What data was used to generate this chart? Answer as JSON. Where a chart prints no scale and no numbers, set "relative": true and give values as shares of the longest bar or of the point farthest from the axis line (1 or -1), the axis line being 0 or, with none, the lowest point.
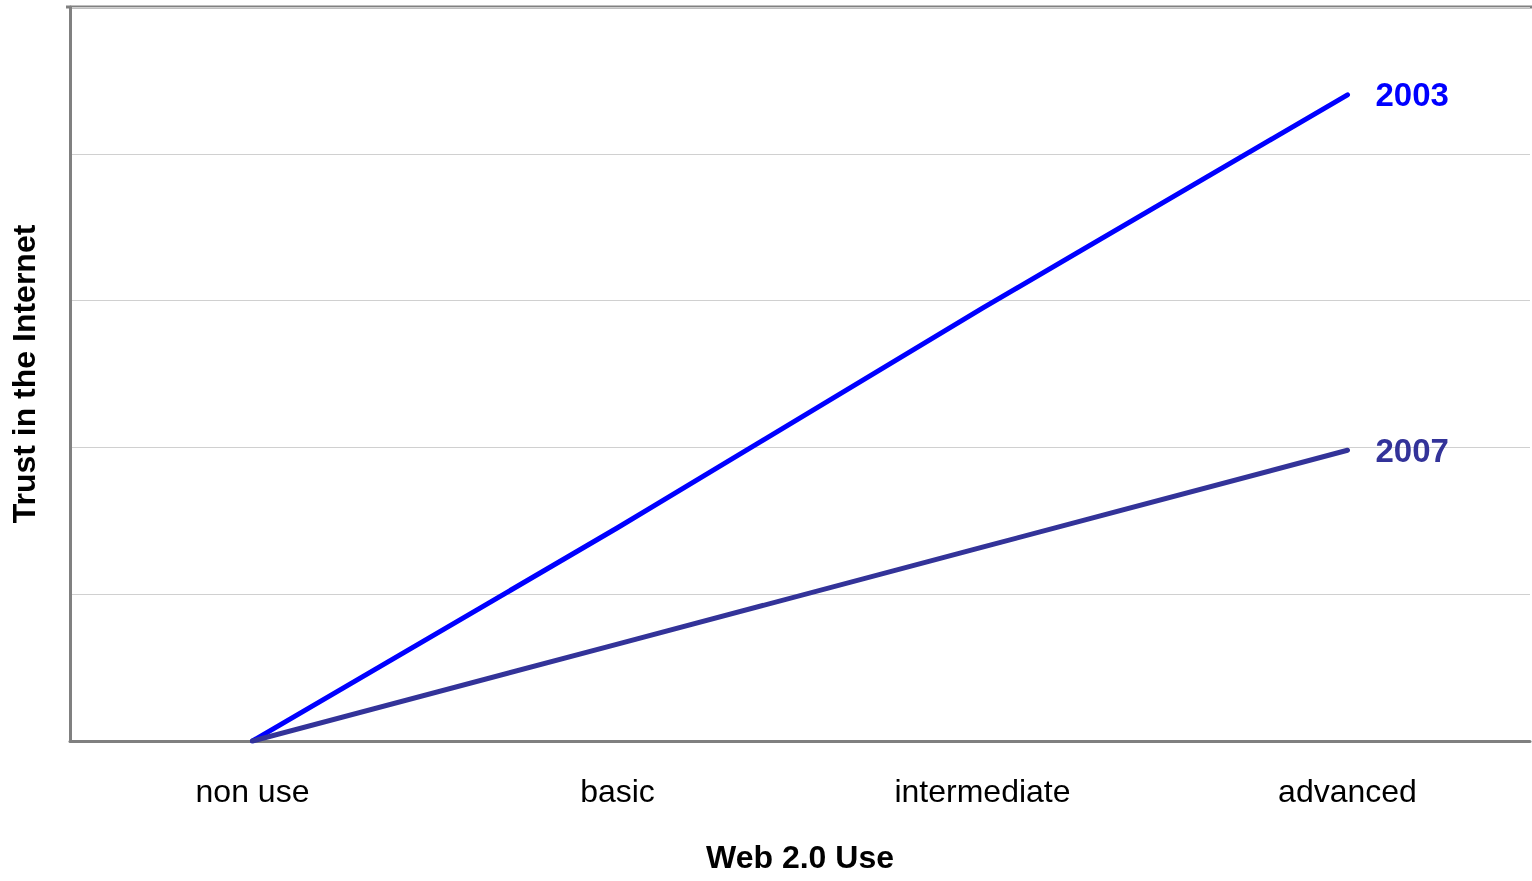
{
  "chart_data": {
    "type": "line",
    "xlabel": "Web 2.0 Use",
    "ylabel": "Trust in the Internet",
    "categories": [
      "non use",
      "basic",
      "intermediate",
      "advanced"
    ],
    "relative": true,
    "grid": "y",
    "legend": false,
    "marker": "none",
    "line_style": "solid",
    "series": [
      {
        "name": "2003",
        "color": "#0000ff",
        "values": [
          0,
          0.33,
          0.67,
          1
        ]
      },
      {
        "name": "2007",
        "color": "#333399",
        "values": [
          0,
          0.15,
          0.3,
          0.45
        ]
      }
    ]
  }
}
